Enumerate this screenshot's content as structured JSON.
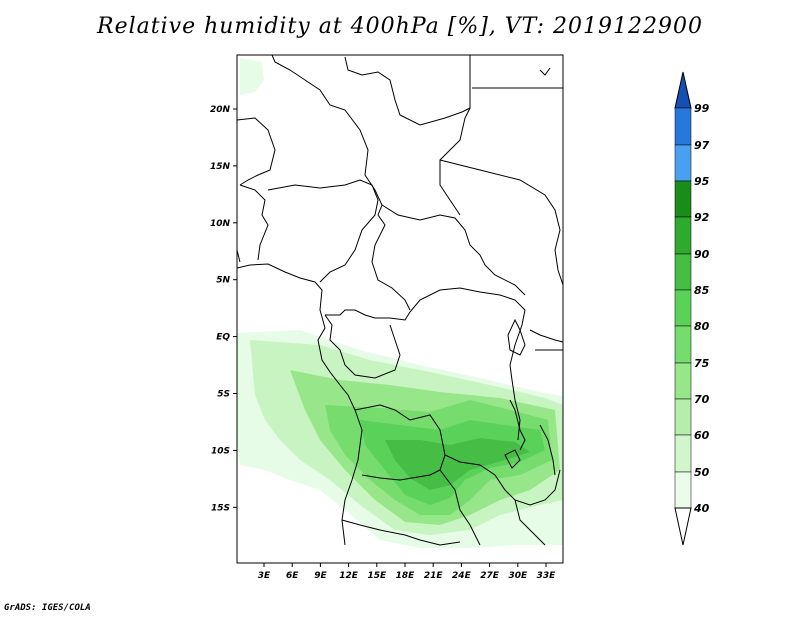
{
  "title": "Relative humidity at 400hPa [%], VT: 2019122900",
  "credit": "GrADS: IGES/COLA",
  "colors": {
    "frame": "#000000",
    "coast": "#000000",
    "green_lightest": "#e6fce6",
    "green_light": "#c8f4c2",
    "green_mid": "#98e68a",
    "green_bright": "#5ad25a",
    "green_dark": "#1e9c1e",
    "blue_light": "#4aa0f0",
    "blue_mid": "#2878dc",
    "blue_dark": "#1450b4"
  },
  "map": {
    "lat_labels": [
      "20N",
      "15N",
      "10N",
      "5N",
      "EQ",
      "5S",
      "10S",
      "15S"
    ],
    "lon_labels": [
      "3E",
      "6E",
      "9E",
      "12E",
      "15E",
      "18E",
      "21E",
      "24E",
      "27E",
      "30E",
      "33E"
    ]
  },
  "colorbar": {
    "labels": [
      "99",
      "97",
      "95",
      "92",
      "90",
      "85",
      "80",
      "75",
      "70",
      "60",
      "50",
      "40"
    ],
    "segment_colors": [
      "#1450b4",
      "#2878dc",
      "#4aa0f0",
      "#1a8c1a",
      "#2eaa2e",
      "#46be46",
      "#5ad25a",
      "#76dc6e",
      "#98e68a",
      "#b4eeaa",
      "#d2f6cc",
      "#ecfcea"
    ]
  }
}
